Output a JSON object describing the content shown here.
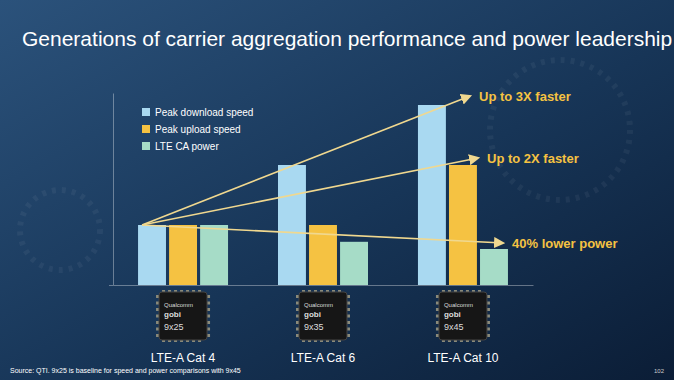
{
  "chart_data": {
    "type": "bar",
    "title": "Generations of carrier aggregation performance and power leadership",
    "categories": [
      "LTE-A Cat 4",
      "LTE-A Cat 6",
      "LTE-A Cat 10"
    ],
    "series": [
      {
        "name": "Peak download speed",
        "color": "#a9d9f1",
        "values": [
          1,
          2,
          3
        ]
      },
      {
        "name": "Peak upload speed",
        "color": "#f5c242",
        "values": [
          1,
          1,
          2
        ]
      },
      {
        "name": "LTE CA power",
        "color": "#a6dcc7",
        "values": [
          1,
          0.72,
          0.6
        ]
      }
    ],
    "ylim": [
      0,
      3.2
    ],
    "yticks": [
      0
    ],
    "tick_labels": "x",
    "grid": false,
    "legend": "top-left",
    "annotations": [
      {
        "text": "Up to 3X faster"
      },
      {
        "text": "Up to 2X faster"
      },
      {
        "text": "40% lower power"
      }
    ],
    "chip_labels": [
      {
        "brand": "Qualcomm",
        "product": "gobi",
        "model": "9x25"
      },
      {
        "brand": "Qualcomm",
        "product": "gobi",
        "model": "9x35"
      },
      {
        "brand": "Qualcomm",
        "product": "gobi",
        "model": "9x45"
      }
    ],
    "source": "Source: QTI. 9x25 is baseline for speed and power comparisons with 9x45",
    "page_label": "102"
  }
}
